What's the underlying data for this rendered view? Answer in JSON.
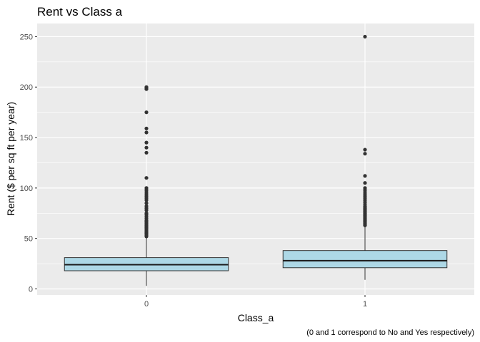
{
  "chart_data": {
    "type": "boxplot",
    "title": "Rent vs Class a",
    "xlabel": "Class_a",
    "ylabel": "Rent ($ per sq ft per year)",
    "caption": "(0 and 1 correspond to No and Yes respectively)",
    "categories": [
      "0",
      "1"
    ],
    "ylim": [
      -6,
      263
    ],
    "yticks": [
      0,
      50,
      100,
      150,
      200,
      250
    ],
    "grid": true,
    "box_color": "#add8e6",
    "panel_color": "#ebebeb",
    "boxes": [
      {
        "category": "0",
        "min": 3,
        "q1": 18,
        "median": 24,
        "q3": 31,
        "whisker_high": 51,
        "outliers": [
          52,
          53,
          54,
          55,
          56,
          57,
          58,
          59,
          60,
          61,
          62,
          63,
          64,
          65,
          66,
          67,
          68,
          70,
          72,
          74,
          75,
          78,
          80,
          82,
          85,
          88,
          90,
          92,
          94,
          96,
          98,
          100,
          110,
          135,
          140,
          145,
          155,
          159,
          175,
          198,
          199,
          200
        ]
      },
      {
        "category": "1",
        "min": 9,
        "q1": 21,
        "median": 28,
        "q3": 38,
        "whisker_high": 62,
        "outliers": [
          63,
          64,
          65,
          66,
          67,
          68,
          69,
          70,
          71,
          72,
          73,
          74,
          75,
          76,
          77,
          78,
          79,
          80,
          81,
          82,
          84,
          86,
          88,
          90,
          92,
          94,
          96,
          98,
          100,
          105,
          112,
          134,
          138,
          250
        ]
      }
    ]
  }
}
